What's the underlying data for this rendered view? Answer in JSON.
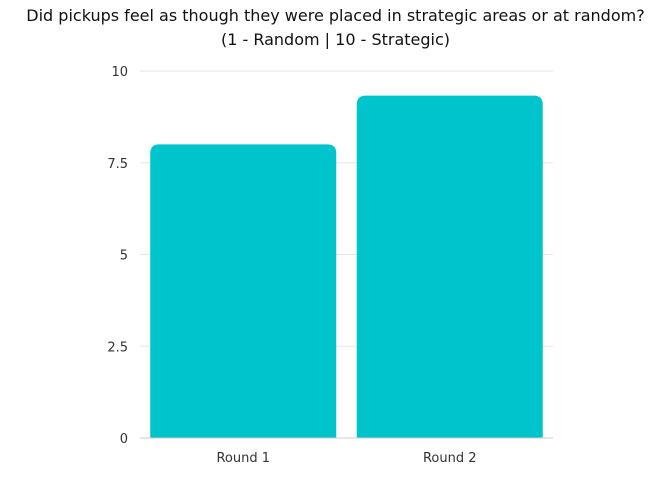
{
  "chart_data": {
    "type": "bar",
    "title": "Did pickups feel as though they were placed in strategic areas or at random?",
    "subtitle": "(1 - Random | 10 - Strategic)",
    "categories": [
      "Round 1",
      "Round 2"
    ],
    "values": [
      8.0,
      9.33
    ],
    "yticks": [
      "0",
      "2.5",
      "5",
      "7.5",
      "10"
    ],
    "ytick_values": [
      0,
      2.5,
      5,
      7.5,
      10
    ],
    "ylim": [
      0,
      10
    ],
    "grid": true,
    "legend": "none",
    "bar_color": "#00c4cc",
    "grid_color": "#e6e6e6",
    "axis_color": "#cccccc"
  }
}
